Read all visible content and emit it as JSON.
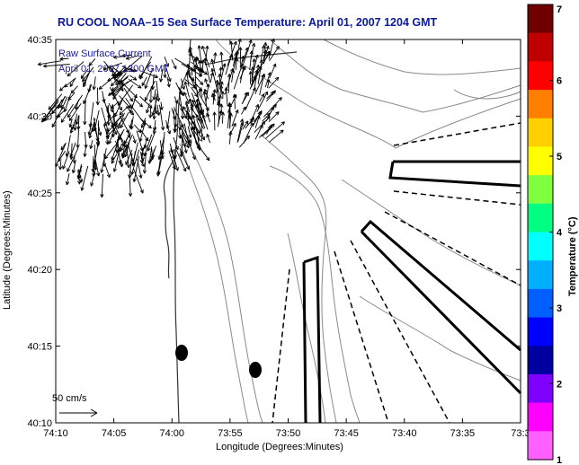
{
  "title": "RU COOL  NOAA–15  Sea Surface Temperature:  April 01, 2007 1204 GMT",
  "legend": {
    "line1": "Raw Surface Current",
    "line2": "April 01, 2007 1200 GMT"
  },
  "scale_label": "50 cm/s",
  "xlabel": "Longitude (Degrees:Minutes)",
  "ylabel": "Latitude (Degrees:Minutes)",
  "x_ticks": [
    "74:10",
    "74:05",
    "74:00",
    "73:55",
    "73:50",
    "73:45",
    "73:40",
    "73:35",
    "73:3"
  ],
  "y_ticks": [
    "40:35",
    "40:30",
    "40:25",
    "40:20",
    "40:15",
    "40:10"
  ],
  "colorbar": {
    "label": "Temperature (°C)",
    "ticks": [
      "7",
      "6",
      "5",
      "4",
      "3",
      "2",
      "1"
    ],
    "colors": [
      "#700000",
      "#c00000",
      "#ff0000",
      "#ff8000",
      "#ffd000",
      "#ffff00",
      "#80ff40",
      "#00ff80",
      "#00ffff",
      "#00b0ff",
      "#0060ff",
      "#0000ff",
      "#0000a0",
      "#8000ff",
      "#ff00ff",
      "#ff60ff"
    ]
  },
  "colors": {
    "title": "#0b1a9c",
    "contour": "#8a8a8a",
    "coast": "#333333",
    "frame": "#000000"
  }
}
